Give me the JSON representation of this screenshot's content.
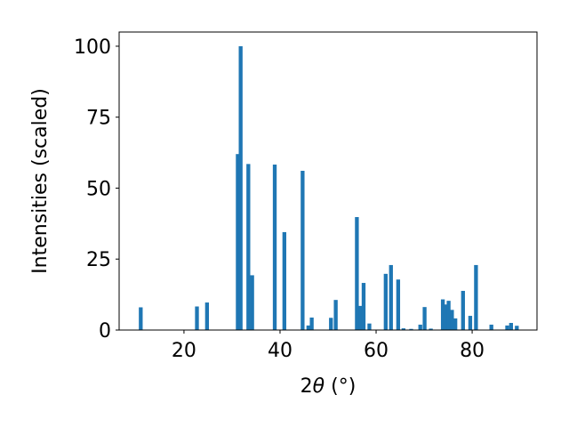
{
  "chart_data": {
    "type": "bar",
    "xlabel_prefix": "2",
    "xlabel_symbol": "θ",
    "xlabel_unit": " (°)",
    "ylabel": "Intensities (scaled)",
    "xlim": [
      6.5,
      93.5
    ],
    "ylim": [
      0,
      105
    ],
    "xticks": [
      20,
      40,
      60,
      80
    ],
    "yticks": [
      0,
      25,
      50,
      75,
      100
    ],
    "grid": false,
    "bar_width": 0.8,
    "bar_color": "#1f77b4",
    "x": [
      11.0,
      22.7,
      24.8,
      31.2,
      31.8,
      33.4,
      34.2,
      38.9,
      40.9,
      44.7,
      45.9,
      46.6,
      50.6,
      51.6,
      56.0,
      56.7,
      57.4,
      58.6,
      62.0,
      63.1,
      64.6,
      65.7,
      67.3,
      69.2,
      70.1,
      71.4,
      73.9,
      74.4,
      75.1,
      75.8,
      76.5,
      78.1,
      79.6,
      80.8,
      84.0,
      87.3,
      88.1,
      89.3
    ],
    "values": [
      8.0,
      8.3,
      9.7,
      62.0,
      100.0,
      58.5,
      19.3,
      58.3,
      34.5,
      56.1,
      1.6,
      4.4,
      4.3,
      10.6,
      39.8,
      8.5,
      16.6,
      2.3,
      19.8,
      22.9,
      17.8,
      0.6,
      0.4,
      1.9,
      8.1,
      0.5,
      10.8,
      9.0,
      10.3,
      7.1,
      4.1,
      13.8,
      5.0,
      22.9,
      1.9,
      1.6,
      2.5,
      1.5
    ]
  }
}
